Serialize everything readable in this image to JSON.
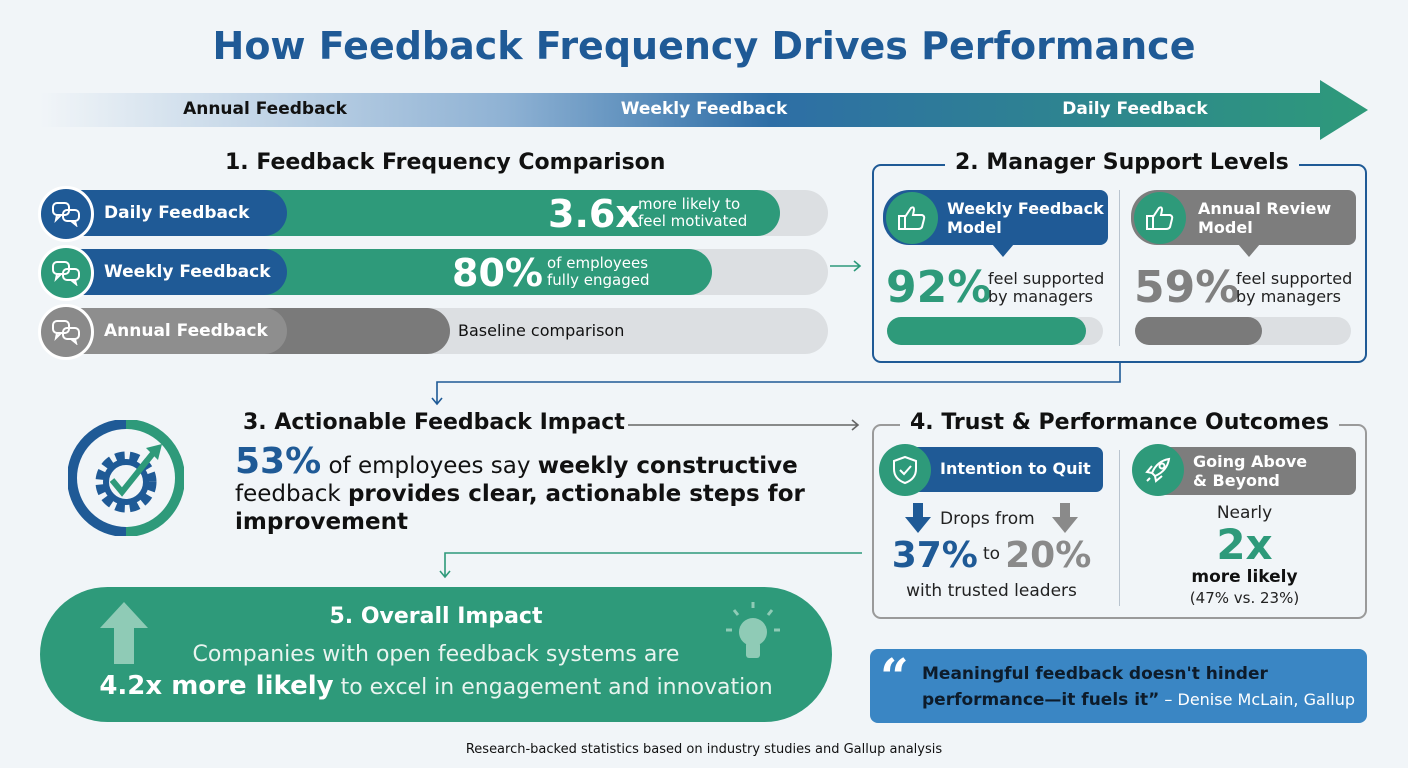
{
  "title": "How Feedback Frequency Drives Performance",
  "timeline": {
    "labels": [
      "Annual Feedback",
      "Weekly Feedback",
      "Daily Feedback"
    ]
  },
  "colors": {
    "navy": "#1f5a96",
    "green": "#2e9a7a",
    "gray": "#7d7d7d",
    "track": "#dcdfe2",
    "quote_bg": "#3a86c4"
  },
  "section1": {
    "heading": "1. Feedback Frequency Comparison",
    "rows": [
      {
        "label": "Daily Feedback",
        "stat": "3.6x",
        "line1": "more likely to",
        "line2": "feel motivated",
        "icon": "chat-bubbles-icon"
      },
      {
        "label": "Weekly Feedback",
        "stat": "80%",
        "line1": "of employees",
        "line2": "fully engaged",
        "icon": "chat-bubbles-icon"
      },
      {
        "label": "Annual Feedback",
        "note": "Baseline comparison",
        "icon": "chat-bubbles-icon"
      }
    ]
  },
  "section2": {
    "heading": "2. Manager Support Levels",
    "cards": [
      {
        "title_line1": "Weekly Feedback",
        "title_line2": "Model",
        "value": "92%",
        "text1": "feel supported",
        "text2": "by managers",
        "progress": 92,
        "icon": "thumbs-up-icon"
      },
      {
        "title_line1": "Annual Review",
        "title_line2": "Model",
        "value": "59%",
        "text1": "feel supported",
        "text2": "by managers",
        "progress": 59,
        "icon": "thumbs-up-icon"
      }
    ]
  },
  "section3": {
    "heading": "3. Actionable Feedback Impact",
    "stat": "53%",
    "text_a": " of employees say ",
    "text_b": "weekly constructive",
    "text_c": " feedback ",
    "text_d": "provides clear, actionable steps for improvement",
    "icon": "gear-check-icon"
  },
  "section4": {
    "heading": "4. Trust & Performance Outcomes",
    "left": {
      "title": "Intention to Quit",
      "drops": "Drops from",
      "from": "37%",
      "to_word": "to",
      "to": "20%",
      "caption": "with trusted leaders",
      "icon": "shield-check-icon"
    },
    "right": {
      "title_line1": "Going Above",
      "title_line2": "& Beyond",
      "nearly": "Nearly",
      "stat": "2x",
      "more": "more likely",
      "detail": "(47% vs. 23%)",
      "icon": "rocket-icon"
    }
  },
  "section5": {
    "heading": "5. Overall Impact",
    "line1": "Companies with open feedback systems are",
    "bold": "4.2x more likely",
    "rest": " to excel in engagement and innovation",
    "icons": [
      "up-arrow-icon",
      "lightbulb-icon"
    ]
  },
  "quote": {
    "text_line1": "Meaningful feedback doesn't hinder",
    "text_line2": "performance—it fuels it”",
    "attribution": " – Denise McLain, Gallup"
  },
  "footer": "Research-backed statistics based on industry studies and Gallup analysis"
}
